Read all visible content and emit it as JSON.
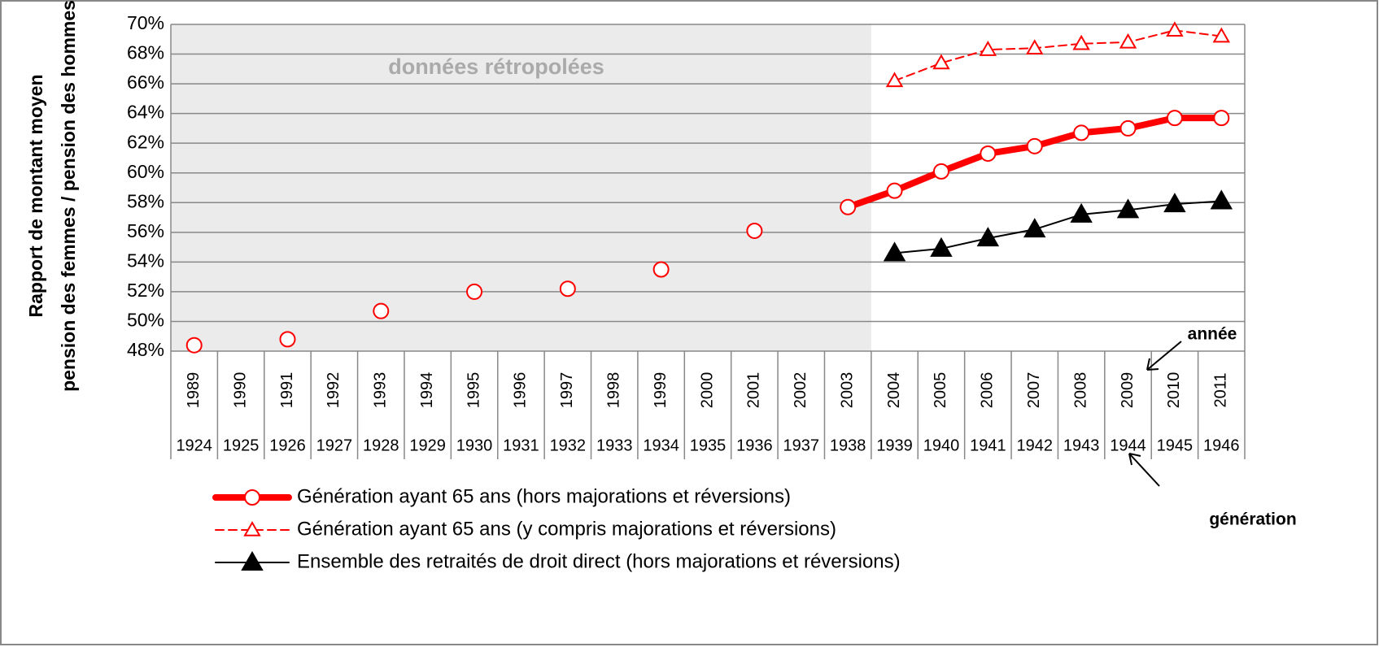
{
  "chart_data": {
    "type": "line",
    "ylabel": [
      "Rapport de montant moyen",
      "pension des femmes / pension des hommes"
    ],
    "categories": [
      "1989",
      "1990",
      "1991",
      "1992",
      "1993",
      "1994",
      "1995",
      "1996",
      "1997",
      "1998",
      "1999",
      "2000",
      "2001",
      "2002",
      "2003",
      "2004",
      "2005",
      "2006",
      "2007",
      "2008",
      "2009",
      "2010",
      "2011"
    ],
    "generations": [
      "1924",
      "1925",
      "1926",
      "1927",
      "1928",
      "1929",
      "1930",
      "1931",
      "1932",
      "1933",
      "1934",
      "1935",
      "1936",
      "1937",
      "1938",
      "1939",
      "1940",
      "1941",
      "1942",
      "1943",
      "1944",
      "1945",
      "1946"
    ],
    "ylim": [
      48,
      70
    ],
    "yticks": [
      {
        "value": 48,
        "label": "48%"
      },
      {
        "value": 50,
        "label": "50%"
      },
      {
        "value": 52,
        "label": "52%"
      },
      {
        "value": 54,
        "label": "54%"
      },
      {
        "value": 56,
        "label": "56%"
      },
      {
        "value": 58,
        "label": "58%"
      },
      {
        "value": 60,
        "label": "60%"
      },
      {
        "value": 62,
        "label": "62%"
      },
      {
        "value": 64,
        "label": "64%"
      },
      {
        "value": 66,
        "label": "66%"
      },
      {
        "value": 68,
        "label": "68%"
      },
      {
        "value": 70,
        "label": "70%"
      }
    ],
    "grid": true,
    "legend": "bottom",
    "shade": {
      "from": "1989",
      "to": "2003",
      "label": "données rétropolées"
    },
    "annotations": [
      {
        "text": "année"
      },
      {
        "text": "génération"
      }
    ],
    "series": [
      {
        "name": "Génération ayant 65 ans (hors majorations et réversions)",
        "color": "#ff0000",
        "line_width": 8,
        "dash": "none",
        "marker": "circle",
        "marker_fill": "#ffffff",
        "values": [
          48.4,
          null,
          48.8,
          null,
          50.7,
          null,
          52.0,
          null,
          52.2,
          null,
          53.5,
          null,
          56.1,
          null,
          57.7,
          58.8,
          60.1,
          61.3,
          61.8,
          62.7,
          63.0,
          63.7,
          63.7
        ]
      },
      {
        "name": "Génération ayant 65 ans (y compris majorations et réversions)",
        "color": "#ff0000",
        "line_width": 2,
        "dash": "10,6",
        "marker": "triangle",
        "marker_fill": "#ffffff",
        "values": [
          null,
          null,
          null,
          null,
          null,
          null,
          null,
          null,
          null,
          null,
          null,
          null,
          null,
          null,
          null,
          66.2,
          67.4,
          68.3,
          68.4,
          68.7,
          68.8,
          69.6,
          69.2
        ]
      },
      {
        "name": "Ensemble des retraités de droit direct (hors majorations et réversions)",
        "color": "#000000",
        "line_width": 2,
        "dash": "none",
        "marker": "triangle",
        "marker_fill": "#000000",
        "values": [
          null,
          null,
          null,
          null,
          null,
          null,
          null,
          null,
          null,
          null,
          null,
          null,
          null,
          null,
          null,
          54.6,
          54.9,
          55.6,
          56.2,
          57.2,
          57.5,
          57.9,
          58.1
        ]
      }
    ]
  }
}
